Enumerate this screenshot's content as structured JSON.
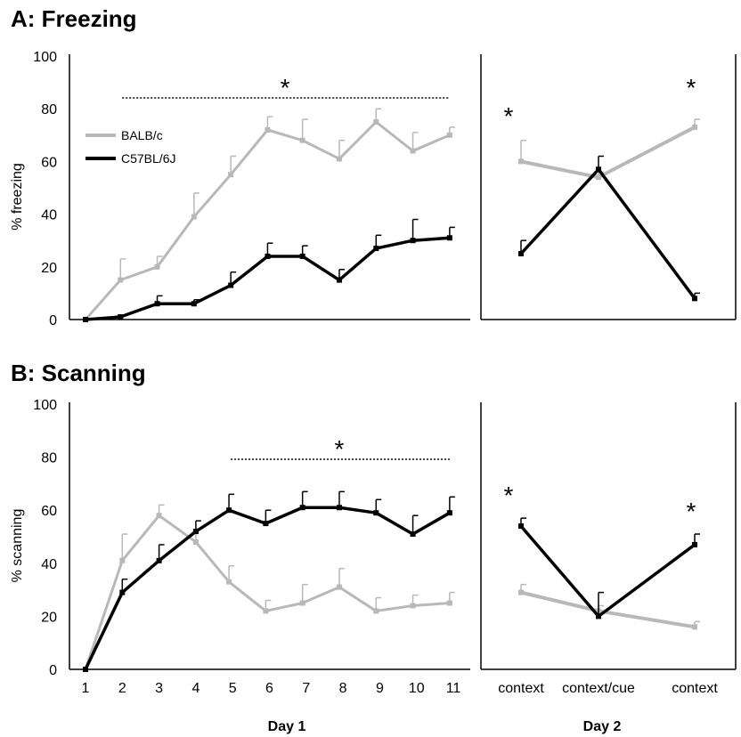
{
  "chart_data": [
    {
      "type": "line",
      "panel_title": "A: Freezing",
      "ylabel": "% freezing",
      "ylim": [
        0,
        100
      ],
      "yticks": [
        0,
        20,
        40,
        60,
        80,
        100
      ],
      "legend": {
        "placement": "top-left",
        "entries": [
          "BALB/c",
          "C57BL/6J"
        ]
      },
      "significance_marker": "*",
      "day1": {
        "x": [
          1,
          2,
          3,
          4,
          5,
          6,
          7,
          8,
          9,
          10,
          11
        ],
        "xticks": [
          "1",
          "2",
          "3",
          "4",
          "5",
          "6",
          "7",
          "8",
          "9",
          "10",
          "11"
        ],
        "series": [
          {
            "name": "BALB/c",
            "color": "#b8b8b8",
            "x": [
              1,
              1.95,
              2.95,
              3.95,
              4.95,
              5.95,
              6.9,
              7.9,
              8.9,
              9.9,
              10.9
            ],
            "values": [
              0,
              15,
              20,
              39,
              55,
              72,
              68,
              61,
              75,
              64,
              70
            ],
            "errors": [
              0,
              8,
              4,
              9,
              7,
              5,
              8,
              7,
              5,
              7,
              3
            ]
          },
          {
            "name": "C57BL/6J",
            "color": "#000000",
            "x": [
              1,
              1.95,
              2.95,
              3.95,
              4.95,
              5.95,
              6.9,
              7.9,
              8.9,
              9.9,
              10.9
            ],
            "values": [
              0,
              1,
              6,
              6,
              13,
              24,
              24,
              15,
              27,
              30,
              31
            ],
            "errors": [
              0,
              0,
              3,
              1.5,
              5,
              5,
              4,
              4,
              5,
              8,
              4
            ]
          }
        ],
        "sig_bar": {
          "from": 1.95,
          "to": 10.9
        }
      },
      "day2": {
        "categories": [
          "context",
          "context/cue",
          "context"
        ],
        "series": [
          {
            "name": "BALB/c",
            "color": "#b8b8b8",
            "values": [
              60,
              54,
              73
            ],
            "errors": [
              8,
              2,
              3
            ]
          },
          {
            "name": "C57BL/6J",
            "color": "#000000",
            "values": [
              25,
              57,
              8
            ],
            "errors": [
              5,
              5,
              2
            ]
          }
        ],
        "sig_stars_at": [
          0,
          2
        ]
      }
    },
    {
      "type": "line",
      "panel_title": "B: Scanning",
      "ylabel": "% scanning",
      "ylim": [
        0,
        100
      ],
      "yticks": [
        0,
        20,
        40,
        60,
        80,
        100
      ],
      "significance_marker": "*",
      "day1": {
        "x": [
          1,
          2,
          3,
          4,
          5,
          6,
          7,
          8,
          9,
          10,
          11
        ],
        "xticks": [
          "1",
          "2",
          "3",
          "4",
          "5",
          "6",
          "7",
          "8",
          "9",
          "10",
          "11"
        ],
        "series": [
          {
            "name": "BALB/c",
            "color": "#b8b8b8",
            "x": [
              1,
              2,
              3,
              4,
              4.9,
              5.9,
              6.9,
              7.9,
              8.9,
              9.9,
              10.9
            ],
            "values": [
              0,
              41,
              58,
              48,
              33,
              22,
              25,
              31,
              22,
              24,
              25
            ],
            "errors": [
              0,
              10,
              4,
              5,
              6,
              4,
              7,
              7,
              5,
              4,
              4
            ]
          },
          {
            "name": "C57BL/6J",
            "color": "#000000",
            "x": [
              1,
              2,
              3,
              4,
              4.9,
              5.9,
              6.9,
              7.9,
              8.9,
              9.9,
              10.9
            ],
            "values": [
              0,
              29,
              41,
              52,
              60,
              55,
              61,
              61,
              59,
              51,
              59
            ],
            "errors": [
              0,
              5,
              6,
              4,
              6,
              5,
              6,
              6,
              5,
              7,
              6
            ]
          }
        ],
        "sig_bar": {
          "from": 4.9,
          "to": 10.9
        }
      },
      "day2": {
        "categories": [
          "context",
          "context/cue",
          "context"
        ],
        "series": [
          {
            "name": "BALB/c",
            "color": "#b8b8b8",
            "values": [
              29,
              22,
              16
            ],
            "errors": [
              3,
              2,
              2
            ]
          },
          {
            "name": "C57BL/6J",
            "color": "#000000",
            "values": [
              54,
              20,
              47
            ],
            "errors": [
              3,
              9,
              4
            ]
          }
        ],
        "sig_stars_at": [
          0,
          2
        ]
      }
    }
  ],
  "shared_x_labels": {
    "day1": "Day 1",
    "day2": "Day 2"
  }
}
